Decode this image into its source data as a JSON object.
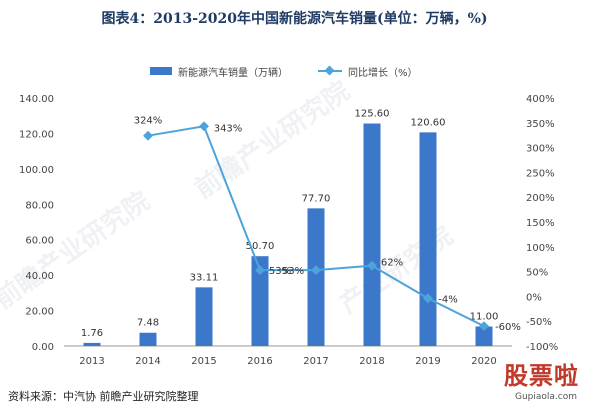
{
  "title": "图表4：2013-2020年中国新能源汽车销量(单位：万辆，%)",
  "source": "资料来源：中汽协 前瞻产业研究院整理",
  "watermarks": {
    "logo": "股票啦",
    "url": "Gupiaola.com",
    "diagonal": [
      "前瞻产业研究院",
      "前瞻产业研究院",
      "产业研究院"
    ]
  },
  "colors": {
    "bar": "#3b78c9",
    "line": "#4da3db",
    "axis": "#999999",
    "title": "#1f3b64"
  },
  "chart_data": {
    "type": "bar+line",
    "categories": [
      "2013",
      "2014",
      "2015",
      "2016",
      "2017",
      "2018",
      "2019",
      "2020"
    ],
    "x_tick_labels": [
      "2013",
      "2014",
      "2015",
      "2016",
      "2017",
      "2018",
      "2019",
      "2020"
    ],
    "series": [
      {
        "name": "新能源汽车销量（万辆）",
        "type": "bar",
        "axis": "left",
        "values": [
          1.76,
          7.48,
          33.11,
          50.7,
          77.7,
          125.6,
          120.6,
          11.0
        ],
        "labels": [
          "1.76",
          "7.48",
          "33.11",
          "50.70",
          "77.70",
          "125.60",
          "120.60",
          "11.00"
        ]
      },
      {
        "name": "同比增长（%）",
        "type": "line",
        "axis": "right",
        "values": [
          null,
          324,
          343,
          53,
          53,
          62,
          -4,
          -60
        ],
        "labels": [
          "",
          "324%",
          "343%",
          "53%",
          "53%",
          "62%",
          "-4%",
          "-60%"
        ]
      }
    ],
    "y_left": {
      "lim": [
        0,
        140
      ],
      "ticks": [
        0,
        20,
        40,
        60,
        80,
        100,
        120,
        140
      ],
      "tick_labels": [
        "0.00",
        "20.00",
        "40.00",
        "60.00",
        "80.00",
        "100.00",
        "120.00",
        "140.00"
      ]
    },
    "y_right": {
      "lim": [
        -100,
        400
      ],
      "ticks": [
        -100,
        -50,
        0,
        50,
        100,
        150,
        200,
        250,
        300,
        350,
        400
      ],
      "tick_labels": [
        "-100%",
        "-50%",
        "0%",
        "50%",
        "100%",
        "150%",
        "200%",
        "250%",
        "300%",
        "350%",
        "400%"
      ]
    },
    "legend_position": "top",
    "grid": false
  }
}
